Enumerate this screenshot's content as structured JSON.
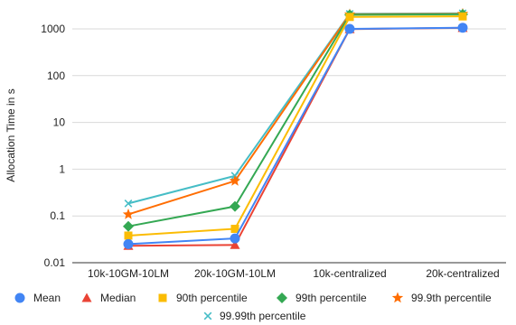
{
  "chart_data": {
    "type": "line",
    "ylabel": "Allocation Time in s",
    "xlabel": "",
    "yscale": "log",
    "ylim": [
      0.01,
      2500
    ],
    "yticks": [
      {
        "value": 0.01,
        "label": "0.01"
      },
      {
        "value": 0.1,
        "label": "0.1"
      },
      {
        "value": 1,
        "label": "1"
      },
      {
        "value": 10,
        "label": "10"
      },
      {
        "value": 100,
        "label": "100"
      },
      {
        "value": 1000,
        "label": "1000"
      }
    ],
    "categories": [
      "10k-10GM-10LM",
      "20k-10GM-10LM",
      "10k-centralized",
      "20k-centralized"
    ],
    "grid": true,
    "legend_position": "bottom",
    "series": [
      {
        "name": "Mean",
        "color": "#4285F4",
        "marker": "circle",
        "values": [
          0.025,
          0.033,
          1000,
          1060
        ]
      },
      {
        "name": "Median",
        "color": "#EA4335",
        "marker": "triangle",
        "values": [
          0.023,
          0.024,
          990,
          1050
        ]
      },
      {
        "name": "90th percentile",
        "color": "#FBBC04",
        "marker": "square",
        "values": [
          0.038,
          0.053,
          1800,
          1850
        ]
      },
      {
        "name": "99th percentile",
        "color": "#34A853",
        "marker": "diamond",
        "values": [
          0.06,
          0.16,
          2000,
          2050
        ]
      },
      {
        "name": "99.9th percentile",
        "color": "#FF6D01",
        "marker": "star",
        "values": [
          0.108,
          0.56,
          2050,
          2100
        ]
      },
      {
        "name": "99.99th percentile",
        "color": "#46BDC6",
        "marker": "x",
        "values": [
          0.185,
          0.72,
          2100,
          2150
        ]
      }
    ]
  }
}
